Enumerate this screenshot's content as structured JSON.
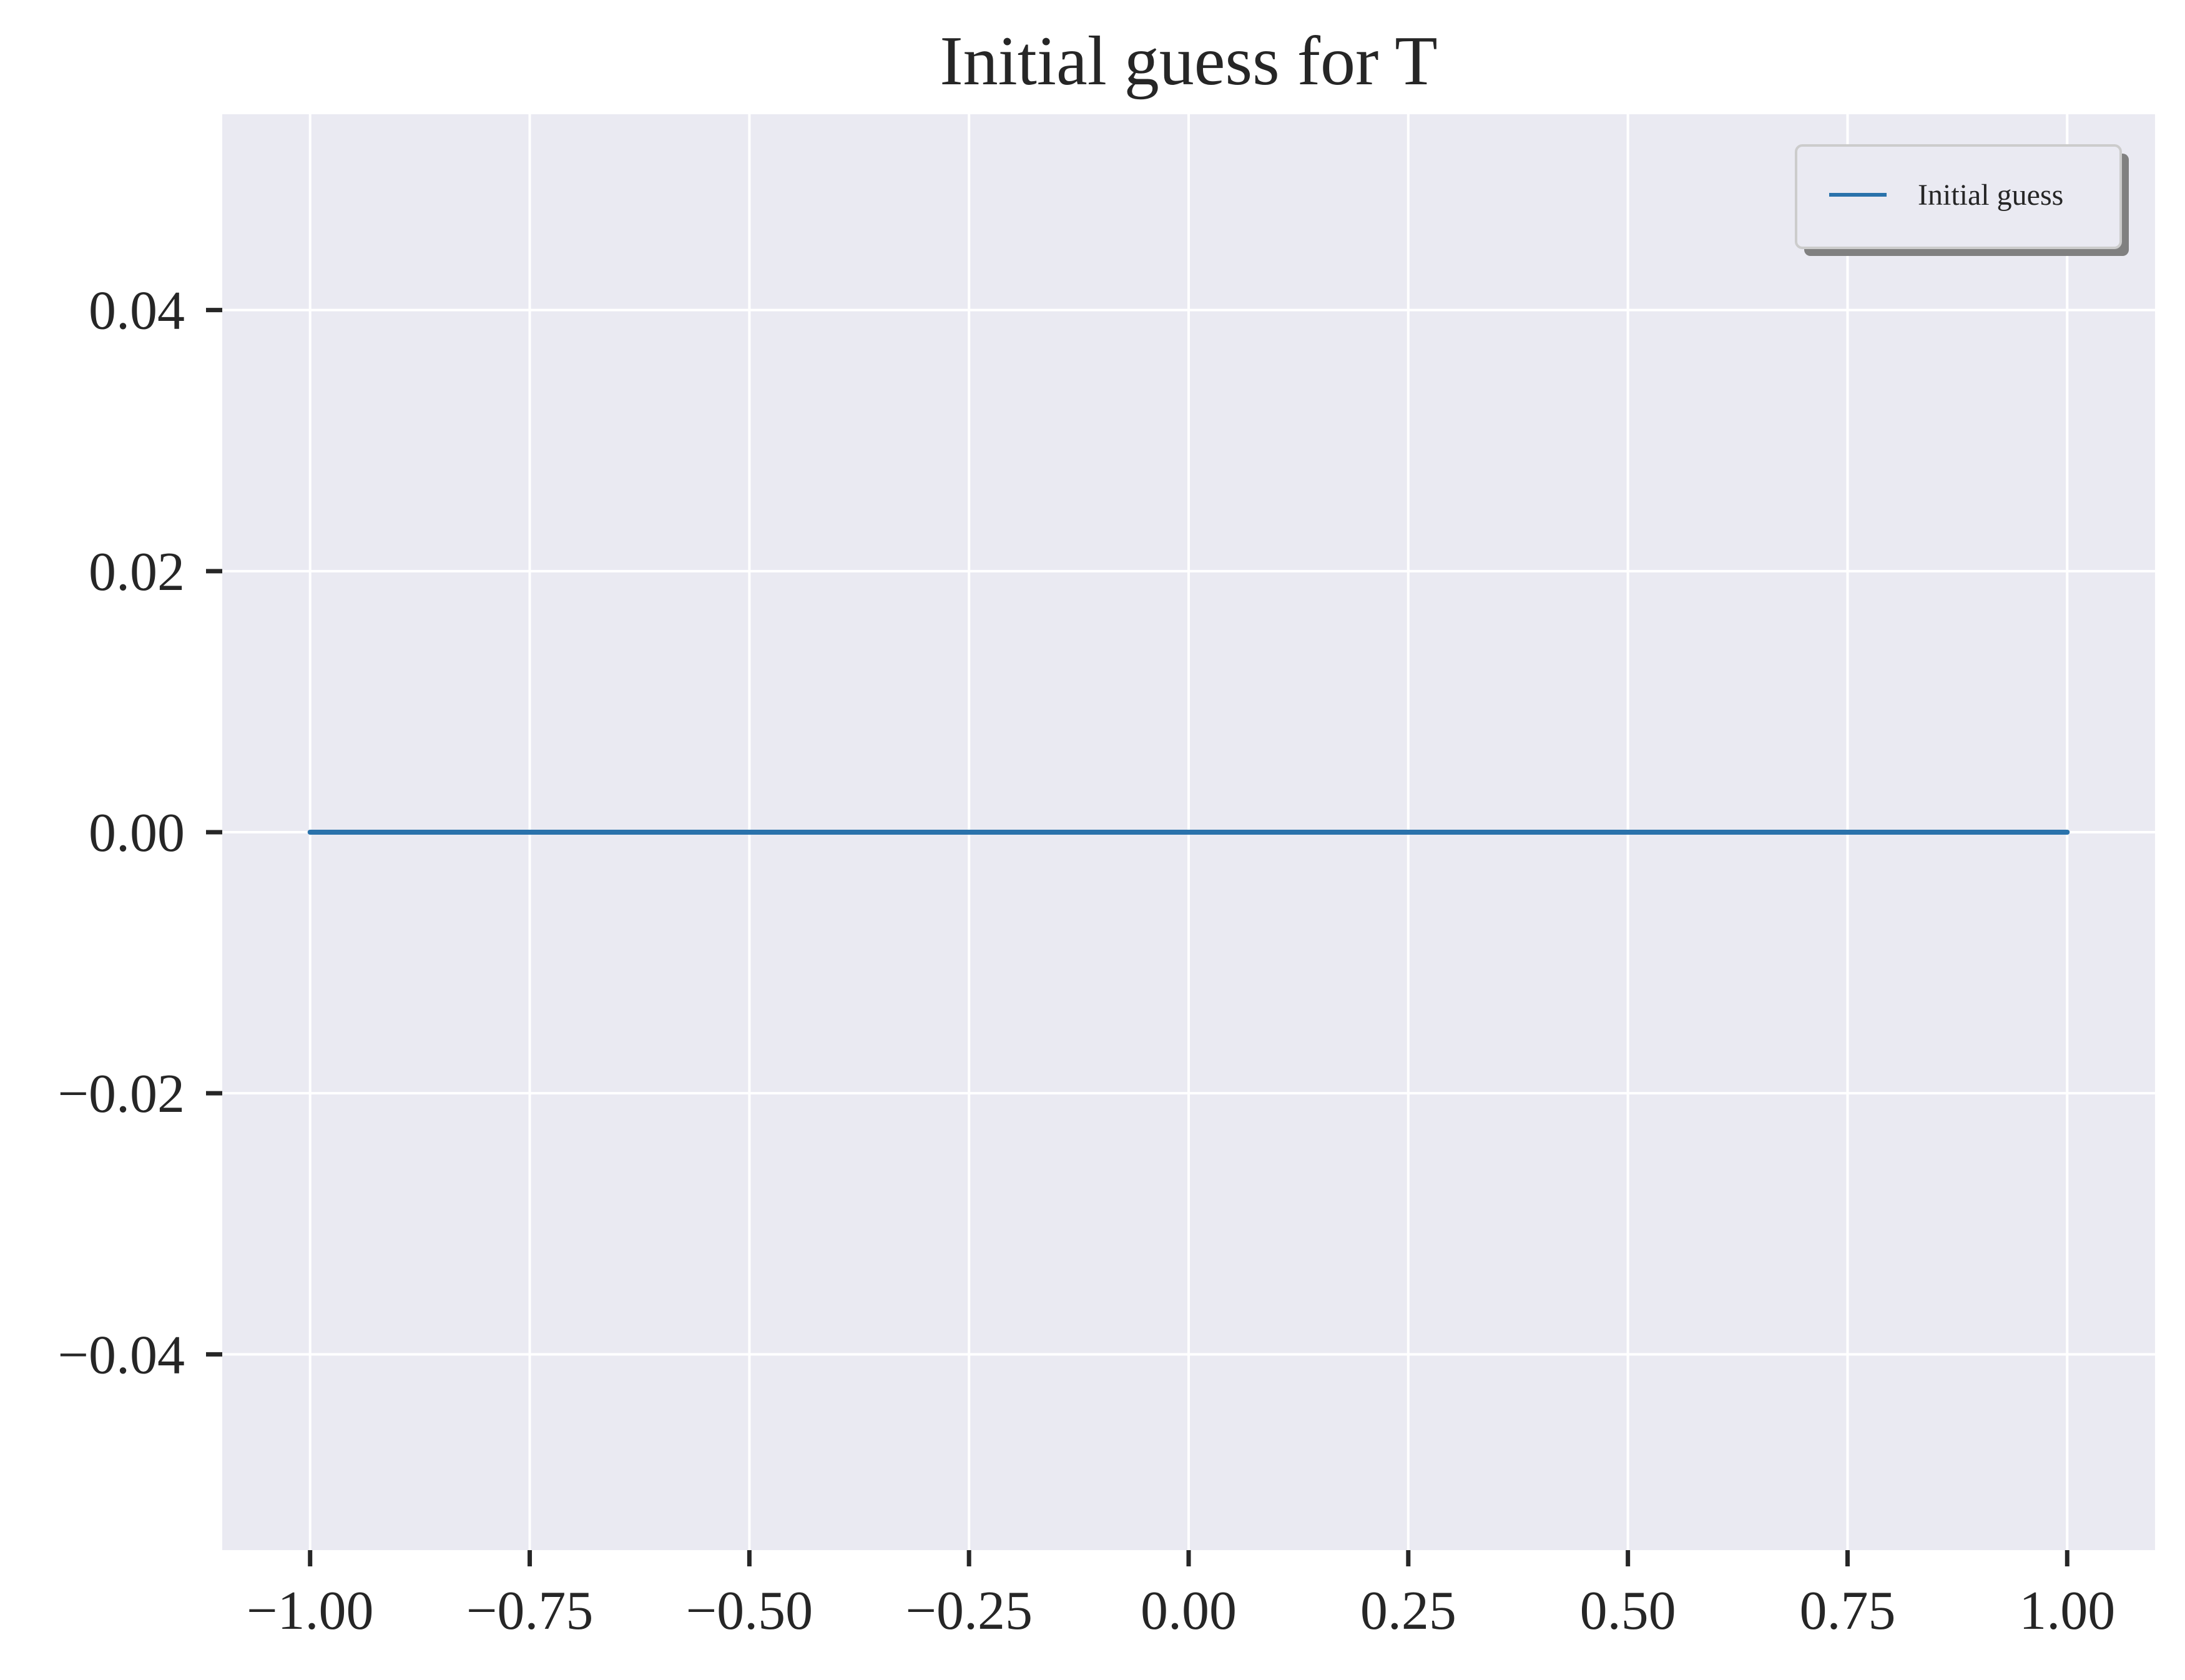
{
  "chart_data": {
    "type": "line",
    "title": "Initial guess for T",
    "xlabel": "",
    "ylabel": "",
    "xlim": [
      -1.1,
      1.1
    ],
    "ylim": [
      -0.055,
      0.055
    ],
    "x_ticks": [
      -1.0,
      -0.75,
      -0.5,
      -0.25,
      0.0,
      0.25,
      0.5,
      0.75,
      1.0
    ],
    "x_tick_labels": [
      "−1.00",
      "−0.75",
      "−0.50",
      "−0.25",
      "0.00",
      "0.25",
      "0.50",
      "0.75",
      "1.00"
    ],
    "y_ticks": [
      0.04,
      0.02,
      0.0,
      -0.02,
      -0.04
    ],
    "y_tick_labels": [
      "0.04",
      "0.02",
      "0.00",
      "−0.02",
      "−0.04"
    ],
    "grid": true,
    "legend_position": "top-right",
    "series": [
      {
        "name": "Initial guess",
        "color": "#2a72ab",
        "x": [
          -1.0,
          -0.75,
          -0.5,
          -0.25,
          0.0,
          0.25,
          0.5,
          0.75,
          1.0
        ],
        "y": [
          0,
          0,
          0,
          0,
          0,
          0,
          0,
          0,
          0
        ]
      }
    ]
  },
  "colors": {
    "plot_background": "#eaeaf2",
    "grid": "#ffffff",
    "text": "#262626"
  }
}
